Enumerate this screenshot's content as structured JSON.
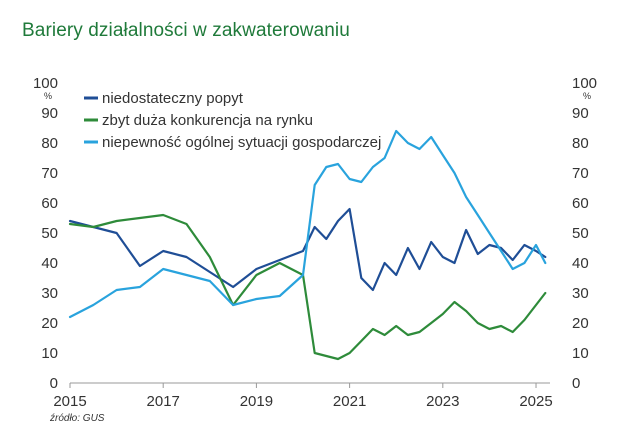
{
  "title": "Bariery działalności w zakwaterowaniu",
  "source": "źródło: GUS",
  "chart_data": {
    "type": "line",
    "title": "Bariery działalności w zakwaterowaniu",
    "ylabel_left": "%",
    "ylabel_right": "%",
    "ylim": [
      0,
      100
    ],
    "xlim": [
      2015.0,
      2025.3
    ],
    "y_ticks": [
      "0",
      "10",
      "20",
      "30",
      "40",
      "50",
      "60",
      "70",
      "80",
      "90",
      "100"
    ],
    "x_ticks": [
      {
        "value": 2015,
        "label": "2015"
      },
      {
        "value": 2017,
        "label": "2017"
      },
      {
        "value": 2019,
        "label": "2019"
      },
      {
        "value": 2021,
        "label": "2021"
      },
      {
        "value": 2023,
        "label": "2023"
      },
      {
        "value": 2025,
        "label": "2025"
      }
    ],
    "series": [
      {
        "name": "niedostateczny popyt",
        "color": "#1f4e96",
        "x": [
          2015.0,
          2015.5,
          2016.0,
          2016.5,
          2017.0,
          2017.5,
          2018.0,
          2018.5,
          2019.0,
          2019.5,
          2020.0,
          2020.25,
          2020.5,
          2020.75,
          2021.0,
          2021.25,
          2021.5,
          2021.75,
          2022.0,
          2022.25,
          2022.5,
          2022.75,
          2023.0,
          2023.25,
          2023.5,
          2023.75,
          2024.0,
          2024.25,
          2024.5,
          2024.75,
          2025.0,
          2025.2
        ],
        "values": [
          54,
          52,
          50,
          39,
          44,
          42,
          37,
          32,
          38,
          41,
          44,
          52,
          48,
          54,
          58,
          35,
          31,
          40,
          36,
          45,
          38,
          47,
          42,
          40,
          51,
          43,
          46,
          45,
          41,
          46,
          44,
          42
        ]
      },
      {
        "name": "zbyt duża konkurencja na rynku",
        "color": "#2e8b3a",
        "x": [
          2015.0,
          2015.5,
          2016.0,
          2016.5,
          2017.0,
          2017.5,
          2018.0,
          2018.5,
          2019.0,
          2019.5,
          2020.0,
          2020.25,
          2020.5,
          2020.75,
          2021.0,
          2021.25,
          2021.5,
          2021.75,
          2022.0,
          2022.25,
          2022.5,
          2022.75,
          2023.0,
          2023.25,
          2023.5,
          2023.75,
          2024.0,
          2024.25,
          2024.5,
          2024.75,
          2025.0,
          2025.2
        ],
        "values": [
          53,
          52,
          54,
          55,
          56,
          53,
          42,
          26,
          36,
          40,
          36,
          10,
          9,
          8,
          10,
          14,
          18,
          16,
          19,
          16,
          17,
          20,
          23,
          27,
          24,
          20,
          18,
          19,
          17,
          21,
          26,
          30
        ]
      },
      {
        "name": "niepewność ogólnej sytuacji gospodarczej",
        "color": "#29a3dd",
        "x": [
          2015.0,
          2015.5,
          2016.0,
          2016.5,
          2017.0,
          2017.5,
          2018.0,
          2018.5,
          2019.0,
          2019.5,
          2020.0,
          2020.25,
          2020.5,
          2020.75,
          2021.0,
          2021.25,
          2021.5,
          2021.75,
          2022.0,
          2022.25,
          2022.5,
          2022.75,
          2023.0,
          2023.25,
          2023.5,
          2023.75,
          2024.0,
          2024.25,
          2024.5,
          2024.75,
          2025.0,
          2025.2
        ],
        "values": [
          22,
          26,
          31,
          32,
          38,
          36,
          34,
          26,
          28,
          29,
          36,
          66,
          72,
          73,
          68,
          67,
          72,
          75,
          84,
          80,
          78,
          82,
          76,
          70,
          62,
          56,
          50,
          44,
          38,
          40,
          46,
          40
        ]
      }
    ],
    "legend_position": "top-left"
  }
}
